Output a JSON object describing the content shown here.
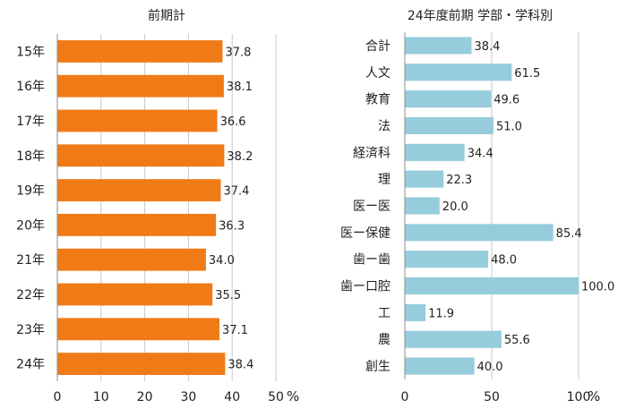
{
  "colors": {
    "left_bar": "#F07B16",
    "right_bar": "#96CCDC",
    "grid": "#C8C8C8",
    "axis": "#8C8C8C"
  },
  "chart_data": [
    {
      "type": "bar",
      "orientation": "horizontal",
      "title": "前期計",
      "unit": "%",
      "categories": [
        "15年",
        "16年",
        "17年",
        "18年",
        "19年",
        "20年",
        "21年",
        "22年",
        "23年",
        "24年"
      ],
      "values": [
        37.8,
        38.1,
        36.6,
        38.2,
        37.4,
        36.3,
        34.0,
        35.5,
        37.1,
        38.4
      ],
      "value_labels": [
        "37.8",
        "38.1",
        "36.6",
        "38.2",
        "37.4",
        "36.3",
        "34.0",
        "35.5",
        "37.1",
        "38.4"
      ],
      "xlim": [
        0,
        50
      ],
      "xticks": [
        "0",
        "10",
        "20",
        "30",
        "40",
        "50"
      ],
      "grid": true
    },
    {
      "type": "bar",
      "orientation": "horizontal",
      "title": "24年度前期 学部・学科別",
      "unit": "%",
      "categories": [
        "合計",
        "人文",
        "教育",
        "法",
        "経済科",
        "理",
        "医ー医",
        "医ー保健",
        "歯ー歯",
        "歯ー口腔",
        "工",
        "農",
        "創生"
      ],
      "values": [
        38.4,
        61.5,
        49.6,
        51.0,
        34.4,
        22.3,
        20.0,
        85.4,
        48.0,
        100.0,
        11.9,
        55.6,
        40.0
      ],
      "value_labels": [
        "38.4",
        "61.5",
        "49.6",
        "51.0",
        "34.4",
        "22.3",
        "20.0",
        "85.4",
        "48.0",
        "100.0",
        "11.9",
        "55.6",
        "40.0"
      ],
      "xlim": [
        0,
        100
      ],
      "xticks": [
        "0",
        "50",
        "100"
      ],
      "grid": true
    }
  ]
}
